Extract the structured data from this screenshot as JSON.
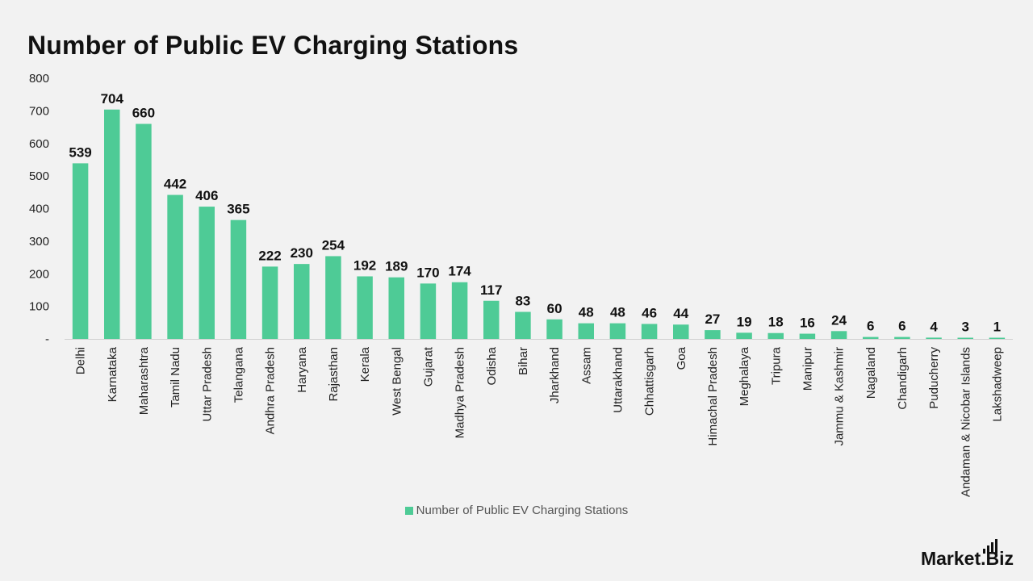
{
  "chart_data": {
    "type": "bar",
    "title": "Number of Public EV Charging Stations",
    "categories": [
      "Delhi",
      "Karnataka",
      "Maharashtra",
      "Tamil Nadu",
      "Uttar Pradesh",
      "Telangana",
      "Andhra Pradesh",
      "Haryana",
      "Rajasthan",
      "Kerala",
      "West Bengal",
      "Gujarat",
      "Madhya Pradesh",
      "Odisha",
      "Bihar",
      "Jharkhand",
      "Assam",
      "Uttarakhand",
      "Chhattisgarh",
      "Goa",
      "Himachal Pradesh",
      "Meghalaya",
      "Tripura",
      "Manipur",
      "Jammu & Kashmir",
      "Nagaland",
      "Chandigarh",
      "Puducherry",
      "Andaman & Nicobar Islands",
      "Lakshadweep"
    ],
    "series": [
      {
        "name": "Number of Public EV Charging Stations",
        "values": [
          539,
          704,
          660,
          442,
          406,
          365,
          222,
          230,
          254,
          192,
          189,
          170,
          174,
          117,
          83,
          60,
          48,
          48,
          46,
          44,
          27,
          19,
          18,
          16,
          24,
          6,
          6,
          4,
          3,
          1
        ]
      }
    ],
    "ylim": [
      0,
      800
    ],
    "yticks": [
      0,
      100,
      200,
      300,
      400,
      500,
      600,
      700,
      800
    ],
    "ytick_labels": [
      "-",
      "100",
      "200",
      "300",
      "400",
      "500",
      "600",
      "700",
      "800"
    ],
    "xlabel": "",
    "ylabel": "",
    "grid": false,
    "legend_position": "bottom",
    "bar_color": "#4ecb96"
  },
  "brand": {
    "name": "Market.Biz"
  }
}
